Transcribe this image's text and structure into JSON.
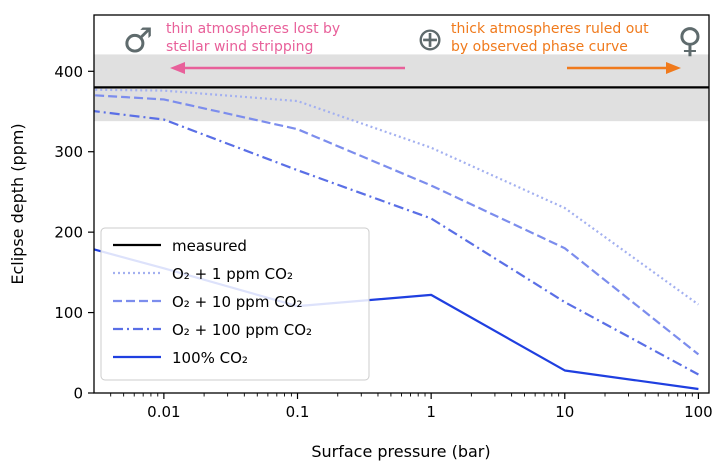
{
  "chart_data": {
    "type": "line",
    "xlabel": "Surface pressure (bar)",
    "ylabel": "Eclipse depth (ppm)",
    "x_scale": "log",
    "xlim": [
      0.003,
      120
    ],
    "ylim": [
      0,
      470
    ],
    "x_ticks": [
      0.01,
      0.1,
      1,
      10,
      100
    ],
    "x_tick_labels": [
      "0.01",
      "0.1",
      "1",
      "10",
      "100"
    ],
    "y_ticks": [
      0,
      100,
      200,
      300,
      400
    ],
    "y_tick_labels": [
      "0",
      "100",
      "200",
      "300",
      "400"
    ],
    "grid": false,
    "legend_position": "bottom-left",
    "measured": {
      "name": "measured",
      "value": 380,
      "band_low": 338,
      "band_high": 421,
      "color": "#000000"
    },
    "series": [
      {
        "name": "O₂ + 1 ppm CO₂",
        "style": "dotted",
        "color": "#a3b0f0",
        "x": [
          0.001,
          0.01,
          0.1,
          1,
          10,
          100
        ],
        "values": [
          378,
          376,
          363,
          305,
          230,
          110
        ]
      },
      {
        "name": "O₂ + 10 ppm CO₂",
        "style": "dashed",
        "color": "#7c8ded",
        "x": [
          0.001,
          0.01,
          0.1,
          1,
          10,
          100
        ],
        "values": [
          375,
          365,
          328,
          258,
          180,
          48
        ]
      },
      {
        "name": "O₂ + 100 ppm CO₂",
        "style": "dashdot",
        "color": "#5a6fe6",
        "x": [
          0.001,
          0.01,
          0.1,
          1,
          10,
          100
        ],
        "values": [
          360,
          340,
          277,
          217,
          113,
          23
        ]
      },
      {
        "name": "100% CO₂",
        "style": "solid",
        "color": "#1f3fe0",
        "x": [
          0.001,
          0.01,
          0.1,
          1,
          10,
          100
        ],
        "values": [
          200,
          155,
          108,
          122,
          28,
          5
        ]
      }
    ],
    "annotations": {
      "left_text_1": "thin atmospheres lost by",
      "left_text_2": "stellar wind stripping",
      "left_color": "#e8609a",
      "right_text_1": "thick atmospheres ruled out",
      "right_text_2": "by observed phase curve",
      "right_color": "#f07a1c",
      "mars_symbol": "♂",
      "earth_symbol": "⊕",
      "venus_symbol": "♀",
      "symbol_color": "#5f6b6d"
    }
  }
}
